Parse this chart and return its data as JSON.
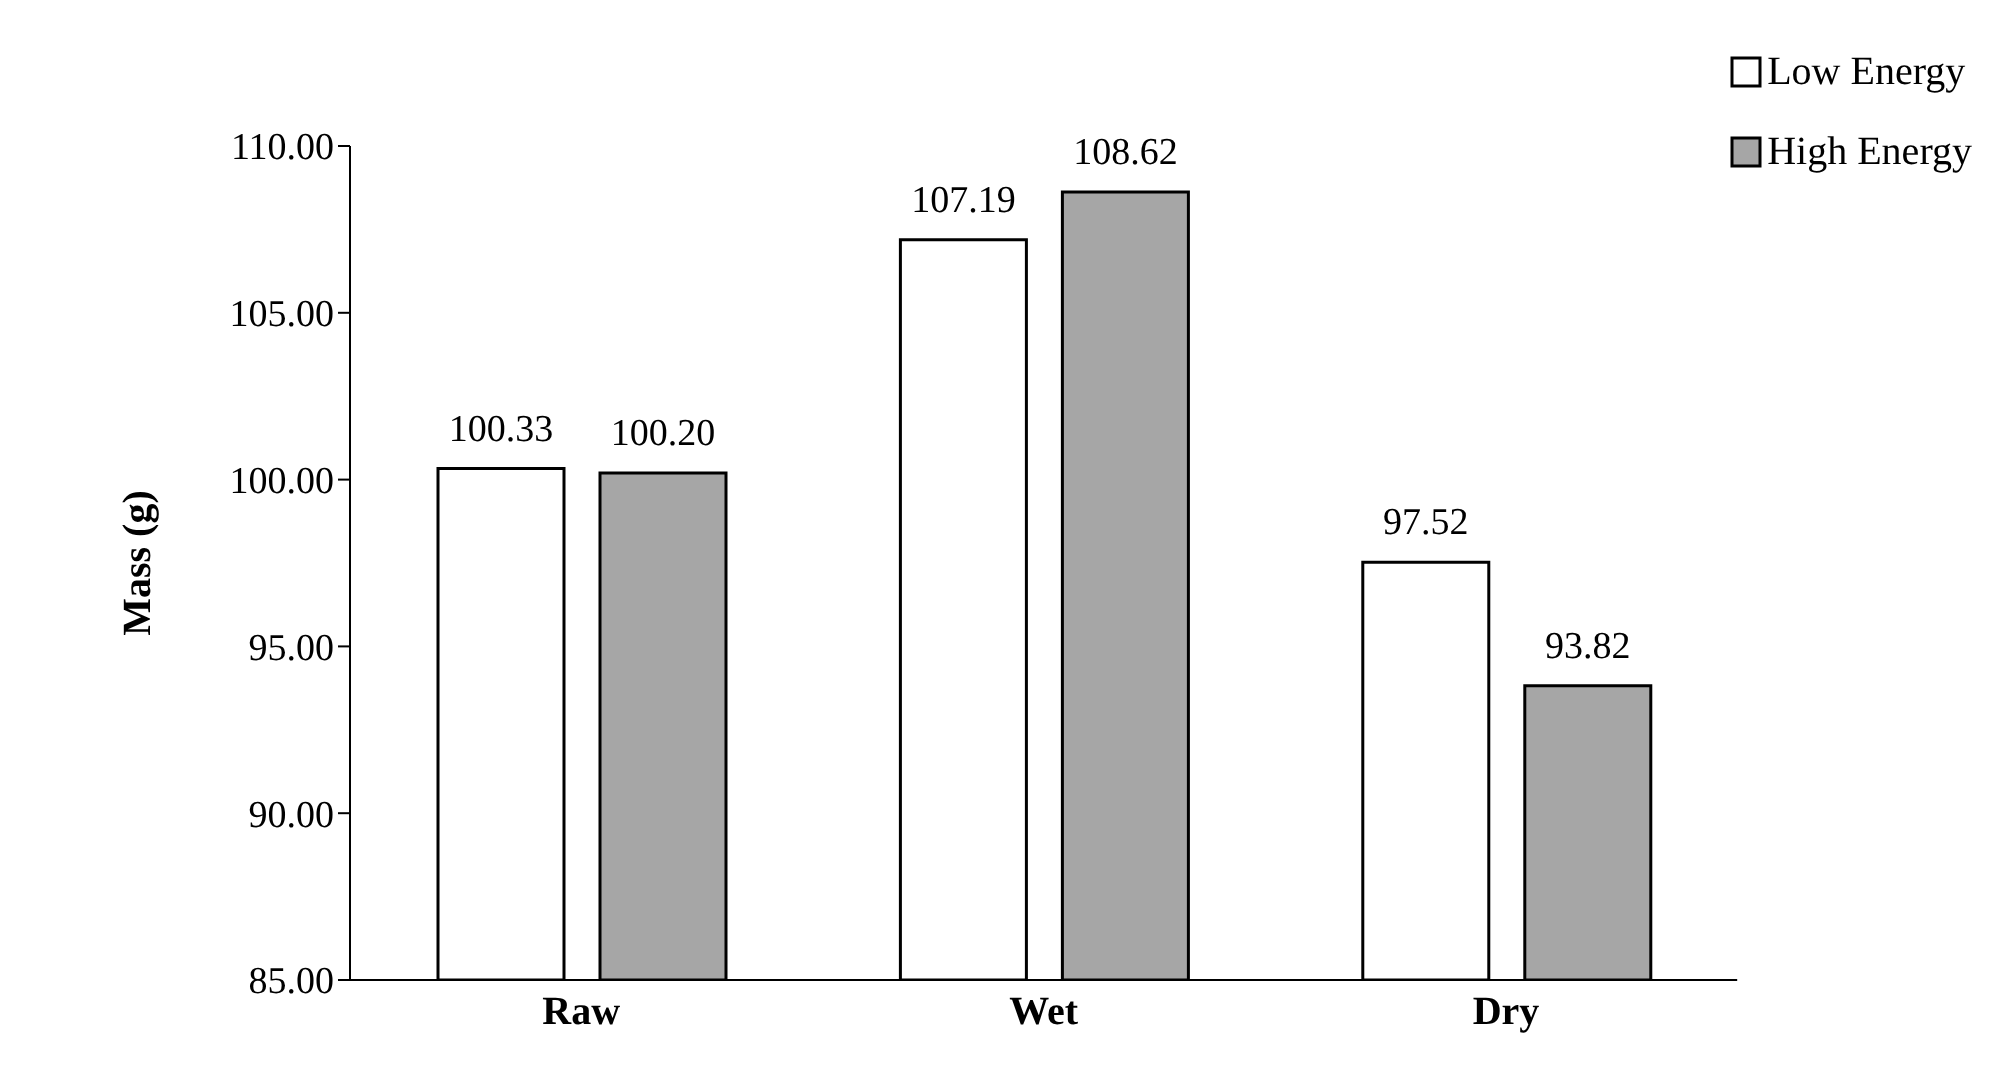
{
  "chart_data": {
    "type": "bar",
    "ylabel": "Mass (g)",
    "categories": [
      "Raw",
      "Wet",
      "Dry"
    ],
    "series": [
      {
        "name": "Low Energy",
        "color": "#ffffff",
        "values": [
          100.33,
          107.19,
          97.52
        ],
        "value_labels": [
          "100.33",
          "107.19",
          "97.52"
        ]
      },
      {
        "name": "High Energy",
        "color": "#a6a6a6",
        "values": [
          100.2,
          108.62,
          93.82
        ],
        "value_labels": [
          "100.20",
          "108.62",
          "93.82"
        ]
      }
    ],
    "ylim": [
      85,
      110
    ],
    "yticks": [
      {
        "value": 85,
        "label": "85.00"
      },
      {
        "value": 90,
        "label": "90.00"
      },
      {
        "value": 95,
        "label": "95.00"
      },
      {
        "value": 100,
        "label": "100.00"
      },
      {
        "value": 105,
        "label": "105.00"
      },
      {
        "value": 110,
        "label": "110.00"
      }
    ],
    "grid": false,
    "legend": "top right"
  }
}
